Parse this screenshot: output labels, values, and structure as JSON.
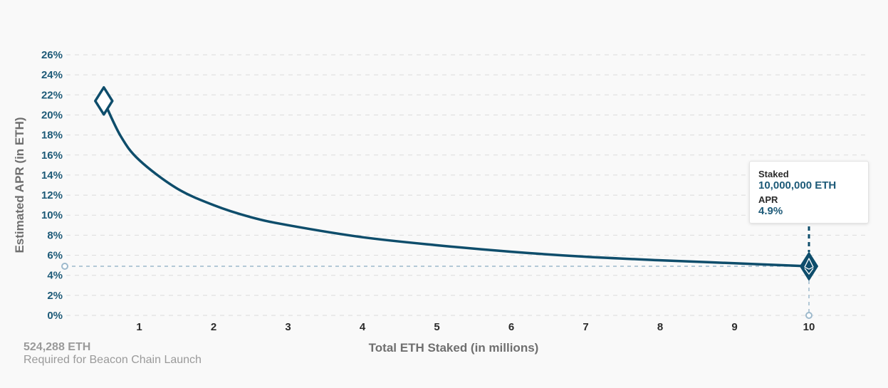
{
  "chart_data": {
    "type": "line",
    "xlabel": "Total ETH Staked  (in millions)",
    "ylabel": "Estimated APR (in ETH)",
    "x_ticks": [
      "1",
      "2",
      "3",
      "4",
      "5",
      "6",
      "7",
      "8",
      "9",
      "10"
    ],
    "y_ticks": [
      "0%",
      "2%",
      "4%",
      "6%",
      "8%",
      "10%",
      "12%",
      "14%",
      "16%",
      "18%",
      "20%",
      "22%",
      "24%",
      "26%"
    ],
    "xlim": [
      0,
      10.5
    ],
    "ylim": [
      0,
      26
    ],
    "series": [
      {
        "x": [
          0.524288,
          0.75,
          1,
          1.5,
          2,
          2.5,
          3,
          4,
          5,
          6,
          7,
          8,
          9,
          10
        ],
        "y": [
          21.4,
          17.9,
          15.5,
          12.7,
          11.0,
          9.8,
          9.0,
          7.8,
          7.0,
          6.35,
          5.85,
          5.5,
          5.2,
          4.9
        ]
      }
    ],
    "start_marker": {
      "x": 0.524288,
      "y": 21.4
    },
    "selected_point": {
      "x": 10,
      "y": 4.9
    },
    "line_color": "#0e4d6b",
    "guide_color": "#9db9cc"
  },
  "tooltip": {
    "staked_label": "Staked",
    "staked_value": "10,000,000 ETH",
    "apr_label": "APR",
    "apr_value": "4.9%"
  },
  "launch_note": {
    "value": "524,288 ETH",
    "caption": "Required for Beacon Chain Launch"
  },
  "icons": {
    "start_marker": "diamond-outline-icon",
    "selected_marker": "ethereum-diamond-icon"
  }
}
